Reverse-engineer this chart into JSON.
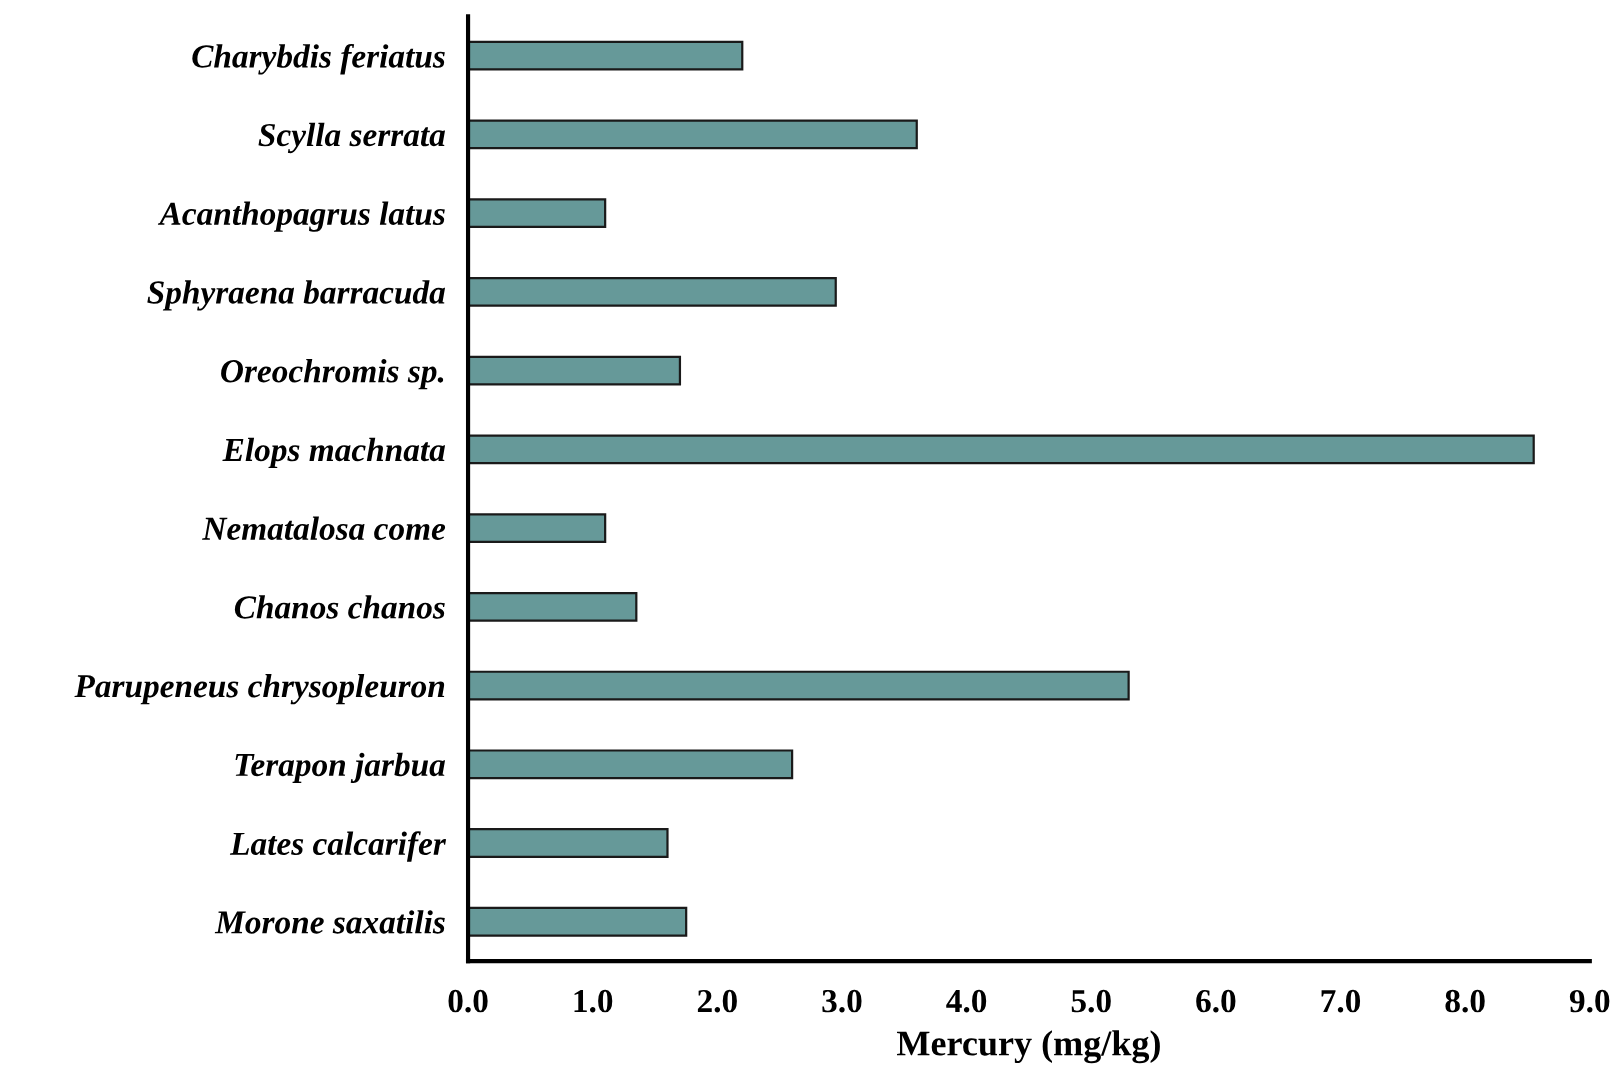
{
  "chart_data": {
    "type": "bar",
    "orientation": "horizontal",
    "xlabel": "Mercury (mg/kg)",
    "categories": [
      "Charybdis feriatus",
      "Scylla serrata",
      "Acanthopagrus latus",
      "Sphyraena barracuda",
      "Oreochromis sp.",
      "Elops machnata",
      "Nematalosa come",
      "Chanos chanos",
      "Parupeneus chrysopleuron",
      "Terapon jarbua",
      "Lates calcarifer",
      "Morone saxatilis"
    ],
    "values": [
      2.2,
      3.6,
      1.1,
      2.95,
      1.7,
      8.55,
      1.1,
      1.35,
      5.3,
      2.6,
      1.6,
      1.75
    ],
    "color": "#669999",
    "xlim": [
      0,
      9
    ],
    "xticks": [
      {
        "value": 0,
        "label": "0.0"
      },
      {
        "value": 1,
        "label": "1.0"
      },
      {
        "value": 2,
        "label": "2.0"
      },
      {
        "value": 3,
        "label": "3.0"
      },
      {
        "value": 4,
        "label": "4.0"
      },
      {
        "value": 5,
        "label": "5.0"
      },
      {
        "value": 6,
        "label": "6.0"
      },
      {
        "value": 7,
        "label": "7.0"
      },
      {
        "value": 8,
        "label": "8.0"
      },
      {
        "value": 9,
        "label": "9.0"
      }
    ],
    "grid": false,
    "legend": false
  }
}
